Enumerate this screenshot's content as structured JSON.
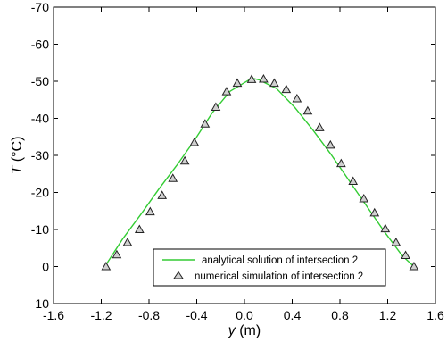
{
  "chart_data": {
    "type": "line",
    "xlabel": "y (m)",
    "xlabel_italic": "y",
    "xlabel_unit": " (m)",
    "ylabel": "T (°C)",
    "ylabel_italic": "T",
    "ylabel_unit": " (°C)",
    "xlim": [
      -1.6,
      1.6
    ],
    "ylim": [
      10,
      -70
    ],
    "y_inverted": true,
    "xticks": [
      -1.6,
      -1.2,
      -0.8,
      -0.4,
      0.0,
      0.4,
      0.8,
      1.2,
      1.6
    ],
    "xtick_labels": [
      "-1.6",
      "-1.2",
      "-0.8",
      "-0.4",
      "0.0",
      "0.4",
      "0.8",
      "1.2",
      "1.6"
    ],
    "yticks": [
      10,
      0,
      -10,
      -20,
      -30,
      -40,
      -50,
      -60,
      -70
    ],
    "ytick_labels": [
      "10",
      "0",
      "-10",
      "-20",
      "-30",
      "-40",
      "-50",
      "-60",
      "-70"
    ],
    "grid": false,
    "legend_position": "bottom-center",
    "series": [
      {
        "name": "analytical solution of intersection 2",
        "kind": "line",
        "color": "#33cc33",
        "x": [
          -1.17,
          -1.02,
          -0.87,
          -0.72,
          -0.57,
          -0.42,
          -0.27,
          -0.12,
          0.04,
          0.08,
          0.12,
          0.27,
          0.42,
          0.57,
          0.72,
          0.87,
          1.02,
          1.17,
          1.32,
          1.42
        ],
        "y": [
          0.0,
          -7.5,
          -14.0,
          -20.8,
          -27.2,
          -34.0,
          -41.5,
          -47.3,
          -50.4,
          -50.7,
          -50.4,
          -48.0,
          -43.0,
          -37.0,
          -30.5,
          -23.5,
          -16.5,
          -9.5,
          -3.0,
          0.0
        ]
      },
      {
        "name": "numerical simulation of intersection 2",
        "kind": "marker",
        "marker": "triangle",
        "color": "#222222",
        "x": [
          -1.16,
          -1.07,
          -0.98,
          -0.88,
          -0.79,
          -0.69,
          -0.6,
          -0.5,
          -0.42,
          -0.33,
          -0.24,
          -0.15,
          -0.06,
          0.06,
          0.16,
          0.25,
          0.35,
          0.44,
          0.53,
          0.63,
          0.72,
          0.81,
          0.91,
          1.0,
          1.09,
          1.18,
          1.27,
          1.35,
          1.42
        ],
        "y": [
          0.0,
          -3.2,
          -6.5,
          -10.0,
          -14.8,
          -19.2,
          -23.8,
          -28.5,
          -33.5,
          -38.5,
          -43.0,
          -47.2,
          -49.5,
          -50.5,
          -50.6,
          -49.5,
          -47.8,
          -45.3,
          -42.0,
          -37.5,
          -32.8,
          -27.8,
          -23.0,
          -18.3,
          -14.5,
          -10.2,
          -6.5,
          -3.0,
          0.0
        ]
      }
    ]
  }
}
